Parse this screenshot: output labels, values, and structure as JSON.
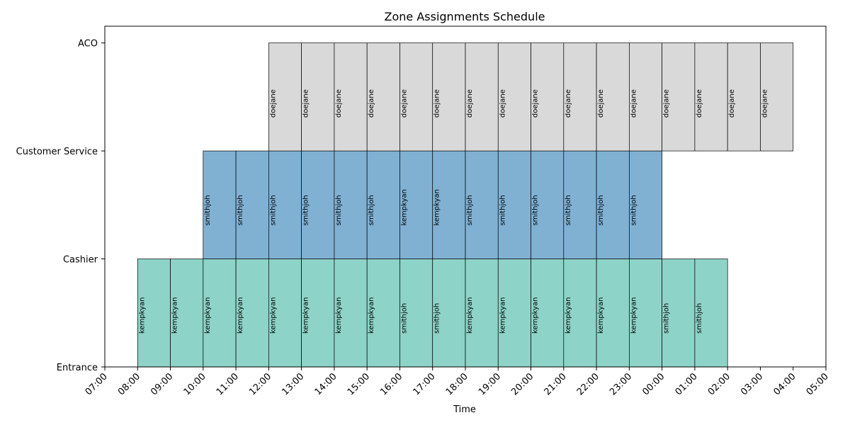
{
  "chart_data": {
    "type": "gantt",
    "title": "Zone Assignments Schedule",
    "xlabel": "Time",
    "ylabel": "",
    "x_tick_labels": [
      "07:00",
      "08:00",
      "09:00",
      "10:00",
      "11:00",
      "12:00",
      "13:00",
      "14:00",
      "15:00",
      "16:00",
      "17:00",
      "18:00",
      "19:00",
      "20:00",
      "21:00",
      "22:00",
      "23:00",
      "00:00",
      "01:00",
      "02:00",
      "03:00",
      "04:00",
      "05:00"
    ],
    "y_tick_labels": [
      "Entrance",
      "Cashier",
      "Customer Service",
      "ACO"
    ],
    "zones": [
      {
        "name": "Cashier",
        "color": "#8dd3c7",
        "start_hour": 8,
        "assignments": [
          "kempkyan",
          "kempkyan",
          "kempkyan",
          "kempkyan",
          "kempkyan",
          "kempkyan",
          "kempkyan",
          "kempkyan",
          "smithjoh",
          "smithjoh",
          "kempkyan",
          "kempkyan",
          "kempkyan",
          "kempkyan",
          "kempkyan",
          "kempkyan",
          "smithjoh",
          "smithjoh"
        ]
      },
      {
        "name": "Customer Service",
        "color": "#80b1d3",
        "start_hour": 10,
        "assignments": [
          "smithjoh",
          "smithjoh",
          "smithjoh",
          "smithjoh",
          "smithjoh",
          "smithjoh",
          "kempkyan",
          "kempkyan",
          "smithjoh",
          "smithjoh",
          "smithjoh",
          "smithjoh",
          "smithjoh",
          "smithjoh"
        ]
      },
      {
        "name": "ACO",
        "color": "#d9d9d9",
        "start_hour": 12,
        "assignments": [
          "doejane",
          "doejane",
          "doejane",
          "doejane",
          "doejane",
          "doejane",
          "doejane",
          "doejane",
          "doejane",
          "doejane",
          "doejane",
          "doejane",
          "doejane",
          "doejane",
          "doejane",
          "doejane"
        ]
      }
    ]
  }
}
